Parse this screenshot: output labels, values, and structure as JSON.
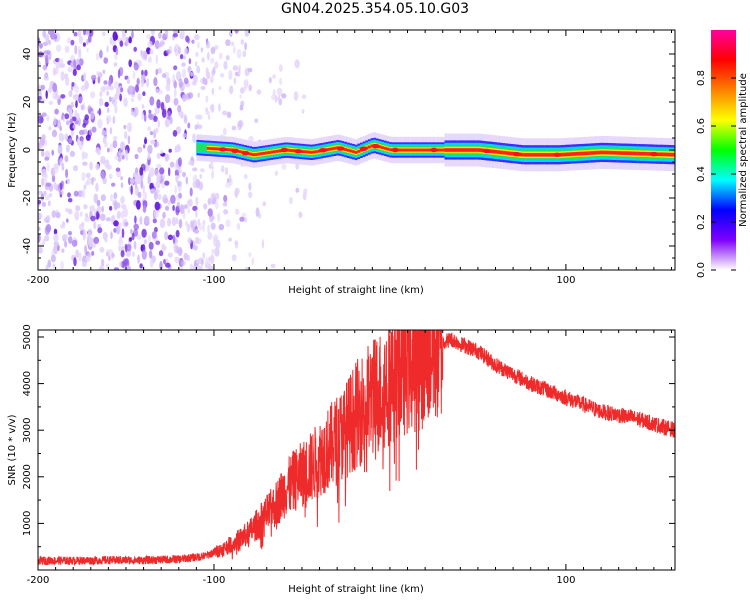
{
  "title": "GN04.2025.354.05.10.G03",
  "chart_data": [
    {
      "type": "heatmap",
      "name": "spectrogram",
      "xlabel": "Height of straight line (km)",
      "ylabel": "Frequency (Hz)",
      "xlim": [
        -200,
        162
      ],
      "ylim": [
        -50,
        50
      ],
      "xticks": [
        -200,
        -100,
        100
      ],
      "xtick_labels": [
        "-200",
        "-100",
        "100"
      ],
      "yticks": [
        -40,
        -20,
        0,
        20,
        40
      ],
      "ytick_labels": [
        "-40",
        "-20",
        "0",
        "20",
        "40"
      ],
      "colorbar": {
        "label": "Normalized spectral amplitude",
        "range": [
          0,
          1
        ],
        "ticks": [
          0.0,
          0.2,
          0.4,
          0.6,
          0.8
        ],
        "tick_labels": [
          "0.0",
          "0.2",
          "0.4",
          "0.6",
          "0.8"
        ],
        "colors": [
          "#ffffff",
          "#7f00ff",
          "#0000ff",
          "#00ffff",
          "#00ff00",
          "#ffff00",
          "#ff8000",
          "#ff0000",
          "#ff00a0"
        ]
      },
      "description_points": {
        "noise_x_range": [
          -200,
          -78
        ],
        "band_x_range": [
          -110,
          162
        ],
        "band_center_freq": [
          [
            -110,
            1
          ],
          [
            -90,
            0
          ],
          [
            -78,
            -2
          ],
          [
            -60,
            0
          ],
          [
            -45,
            -1
          ],
          [
            -30,
            1
          ],
          [
            -20,
            -1
          ],
          [
            -10,
            2
          ],
          [
            0,
            0
          ],
          [
            20,
            0
          ],
          [
            50,
            0
          ],
          [
            75,
            -2
          ],
          [
            95,
            -2
          ],
          [
            120,
            -1
          ],
          [
            162,
            -2
          ]
        ]
      }
    },
    {
      "type": "line",
      "name": "snr",
      "xlabel": "Height of straight line (km)",
      "ylabel": "SNR (10 * v/v)",
      "xlim": [
        -200,
        162
      ],
      "ylim": [
        0,
        5150
      ],
      "xticks": [
        -200,
        -100,
        100
      ],
      "xtick_labels": [
        "-200",
        "-100",
        "100"
      ],
      "yticks": [
        1000,
        2000,
        3000,
        4000,
        5000
      ],
      "ytick_labels": [
        "1000",
        "2000",
        "3000",
        "4000",
        "5000"
      ],
      "color": "#ef2a2a",
      "series": [
        {
          "name": "SNR",
          "x": [
            -200,
            -180,
            -160,
            -140,
            -120,
            -105,
            -95,
            -88,
            -80,
            -75,
            -70,
            -65,
            -60,
            -55,
            -50,
            -45,
            -40,
            -35,
            -30,
            -25,
            -20,
            -15,
            -10,
            -5,
            0,
            5,
            10,
            20,
            30,
            35,
            40,
            50,
            60,
            80,
            100,
            120,
            140,
            162
          ],
          "y": [
            200,
            200,
            210,
            210,
            230,
            300,
            450,
            600,
            800,
            1000,
            1200,
            1400,
            1700,
            1900,
            2050,
            2200,
            2400,
            2600,
            2800,
            3000,
            3300,
            3500,
            3700,
            3850,
            4100,
            4300,
            4450,
            4650,
            4900,
            4950,
            4850,
            4700,
            4400,
            4000,
            3700,
            3400,
            3250,
            3000
          ]
        }
      ]
    }
  ]
}
